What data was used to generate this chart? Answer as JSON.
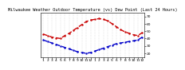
{
  "title": "Milwaukee Weather Outdoor Temperature (vs) Dew Point (Last 24 Hours)",
  "temp_x": [
    0,
    1,
    2,
    3,
    4,
    5,
    6,
    7,
    8,
    9,
    10,
    11,
    12,
    13,
    14,
    15,
    16,
    17,
    18,
    19,
    20,
    21,
    22,
    23
  ],
  "temp_y": [
    46,
    44,
    42,
    41,
    40,
    44,
    47,
    51,
    55,
    59,
    63,
    65,
    66,
    67,
    66,
    64,
    60,
    56,
    52,
    49,
    47,
    45,
    44,
    48
  ],
  "dew_x": [
    0,
    1,
    2,
    3,
    4,
    5,
    6,
    7,
    8,
    9,
    10,
    11,
    12,
    13,
    14,
    15,
    16,
    17,
    18,
    19,
    20,
    21,
    22,
    23
  ],
  "dew_y": [
    38,
    36,
    34,
    32,
    30,
    28,
    26,
    24,
    22,
    21,
    20,
    21,
    23,
    25,
    27,
    29,
    31,
    33,
    34,
    35,
    36,
    37,
    38,
    42
  ],
  "temp_color": "#cc0000",
  "dew_color": "#0000cc",
  "grid_color": "#888888",
  "bg_color": "#ffffff",
  "ylim": [
    15,
    75
  ],
  "xlim": [
    -0.5,
    23.5
  ],
  "ytick_vals": [
    20,
    30,
    40,
    50,
    60,
    70
  ],
  "ytick_labels": [
    "20",
    "30",
    "40",
    "50",
    "60",
    "70"
  ],
  "num_points": 24,
  "title_fontsize": 3.8,
  "tick_fontsize": 3.2,
  "linewidth": 1.0,
  "markersize": 1.5
}
